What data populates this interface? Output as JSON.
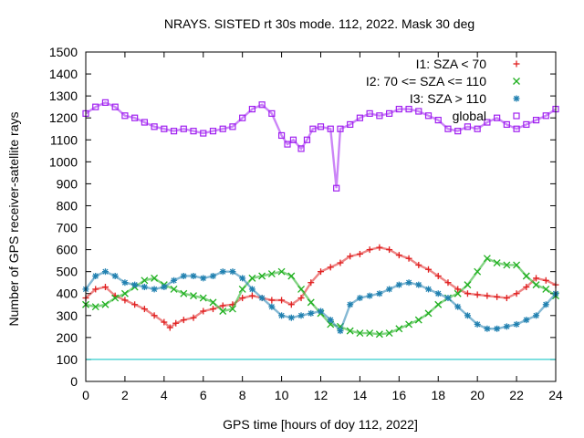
{
  "chart_data": {
    "type": "scatter",
    "title": "NRAYS. SISTED rt 30s mode. 112, 2022. Mask 30 deg",
    "xlabel": "GPS time [hours of doy 112, 2022]",
    "ylabel": "Number of GPS receiver-satellite rays",
    "xlim": [
      0,
      24
    ],
    "ylim": [
      0,
      1500
    ],
    "xticks": [
      0,
      2,
      4,
      6,
      8,
      10,
      12,
      14,
      16,
      18,
      20,
      22,
      24
    ],
    "yticks": [
      0,
      100,
      200,
      300,
      400,
      500,
      600,
      700,
      800,
      900,
      1000,
      1100,
      1200,
      1300,
      1400,
      1500
    ],
    "legend_position": "top-right",
    "reference_line": {
      "y": 100,
      "color": "#00c0c0"
    },
    "series": [
      {
        "name": "I1: SZA < 70",
        "marker": "+",
        "color": "#e02020",
        "x": [
          0.0,
          0.5,
          1.0,
          1.5,
          2.0,
          2.5,
          3.0,
          3.5,
          4.0,
          4.3,
          4.6,
          5.0,
          5.5,
          6.0,
          6.5,
          7.0,
          7.5,
          8.0,
          8.5,
          9.0,
          9.5,
          10.0,
          10.5,
          11.0,
          11.5,
          12.0,
          12.5,
          13.0,
          13.5,
          14.0,
          14.5,
          15.0,
          15.5,
          16.0,
          16.5,
          17.0,
          17.5,
          18.0,
          18.5,
          19.0,
          19.5,
          20.0,
          20.5,
          21.0,
          21.5,
          22.0,
          22.5,
          23.0,
          23.5,
          24.0
        ],
        "y": [
          380,
          420,
          430,
          390,
          370,
          350,
          330,
          300,
          270,
          245,
          265,
          280,
          290,
          320,
          330,
          345,
          350,
          380,
          390,
          380,
          370,
          370,
          350,
          380,
          450,
          500,
          520,
          540,
          570,
          580,
          600,
          610,
          600,
          575,
          560,
          530,
          510,
          480,
          450,
          420,
          400,
          395,
          390,
          385,
          380,
          400,
          430,
          470,
          460,
          440
        ]
      },
      {
        "name": "I2: 70 <= SZA <= 110",
        "marker": "x",
        "color": "#20b020",
        "x": [
          0.0,
          0.5,
          1.0,
          1.5,
          2.0,
          2.5,
          3.0,
          3.5,
          4.0,
          4.5,
          5.0,
          5.5,
          6.0,
          6.5,
          7.0,
          7.5,
          8.0,
          8.5,
          9.0,
          9.5,
          10.0,
          10.5,
          11.0,
          11.5,
          12.0,
          12.5,
          13.0,
          13.5,
          14.0,
          14.5,
          15.0,
          15.5,
          16.0,
          16.5,
          17.0,
          17.5,
          18.0,
          18.5,
          19.0,
          19.5,
          20.0,
          20.5,
          21.0,
          21.5,
          22.0,
          22.5,
          23.0,
          23.5,
          24.0
        ],
        "y": [
          350,
          340,
          350,
          380,
          400,
          430,
          460,
          470,
          440,
          420,
          400,
          390,
          380,
          360,
          320,
          330,
          420,
          470,
          480,
          490,
          500,
          480,
          420,
          360,
          310,
          260,
          250,
          230,
          220,
          220,
          215,
          220,
          240,
          260,
          280,
          310,
          350,
          380,
          400,
          440,
          500,
          560,
          540,
          530,
          530,
          480,
          440,
          420,
          390
        ]
      },
      {
        "name": "I3: SZA > 110",
        "marker": "*",
        "color": "#2080b0",
        "x": [
          0.0,
          0.5,
          1.0,
          1.5,
          2.0,
          2.5,
          3.0,
          3.5,
          4.0,
          4.5,
          5.0,
          5.5,
          6.0,
          6.5,
          7.0,
          7.5,
          8.0,
          8.5,
          9.0,
          9.5,
          10.0,
          10.5,
          11.0,
          11.5,
          12.0,
          12.5,
          13.0,
          13.5,
          14.0,
          14.5,
          15.0,
          15.5,
          16.0,
          16.5,
          17.0,
          17.5,
          18.0,
          18.5,
          19.0,
          19.5,
          20.0,
          20.5,
          21.0,
          21.5,
          22.0,
          22.5,
          23.0,
          23.5,
          24.0
        ],
        "y": [
          420,
          480,
          500,
          480,
          450,
          440,
          430,
          420,
          430,
          460,
          480,
          480,
          470,
          480,
          500,
          500,
          470,
          420,
          380,
          340,
          300,
          290,
          300,
          310,
          320,
          280,
          230,
          350,
          380,
          390,
          400,
          420,
          440,
          450,
          440,
          420,
          400,
          380,
          340,
          300,
          260,
          240,
          240,
          250,
          260,
          280,
          300,
          350,
          400
        ]
      },
      {
        "name": "global",
        "marker": "square",
        "color": "#a020f0",
        "x": [
          0.0,
          0.5,
          1.0,
          1.5,
          2.0,
          2.5,
          3.0,
          3.5,
          4.0,
          4.5,
          5.0,
          5.5,
          6.0,
          6.5,
          7.0,
          7.5,
          8.0,
          8.5,
          9.0,
          9.5,
          10.0,
          10.3,
          10.6,
          11.0,
          11.3,
          11.6,
          12.0,
          12.5,
          12.8,
          13.0,
          13.5,
          14.0,
          14.5,
          15.0,
          15.5,
          16.0,
          16.5,
          17.0,
          17.5,
          18.0,
          18.5,
          19.0,
          19.5,
          20.0,
          20.5,
          21.0,
          21.5,
          22.0,
          22.5,
          23.0,
          23.5,
          24.0
        ],
        "y": [
          1220,
          1250,
          1270,
          1250,
          1210,
          1200,
          1180,
          1160,
          1150,
          1140,
          1150,
          1140,
          1130,
          1140,
          1150,
          1160,
          1200,
          1240,
          1260,
          1220,
          1120,
          1080,
          1100,
          1060,
          1100,
          1150,
          1160,
          1150,
          880,
          1150,
          1170,
          1200,
          1220,
          1210,
          1220,
          1240,
          1240,
          1230,
          1210,
          1190,
          1150,
          1140,
          1160,
          1150,
          1180,
          1200,
          1170,
          1150,
          1170,
          1190,
          1210,
          1240
        ]
      }
    ]
  }
}
